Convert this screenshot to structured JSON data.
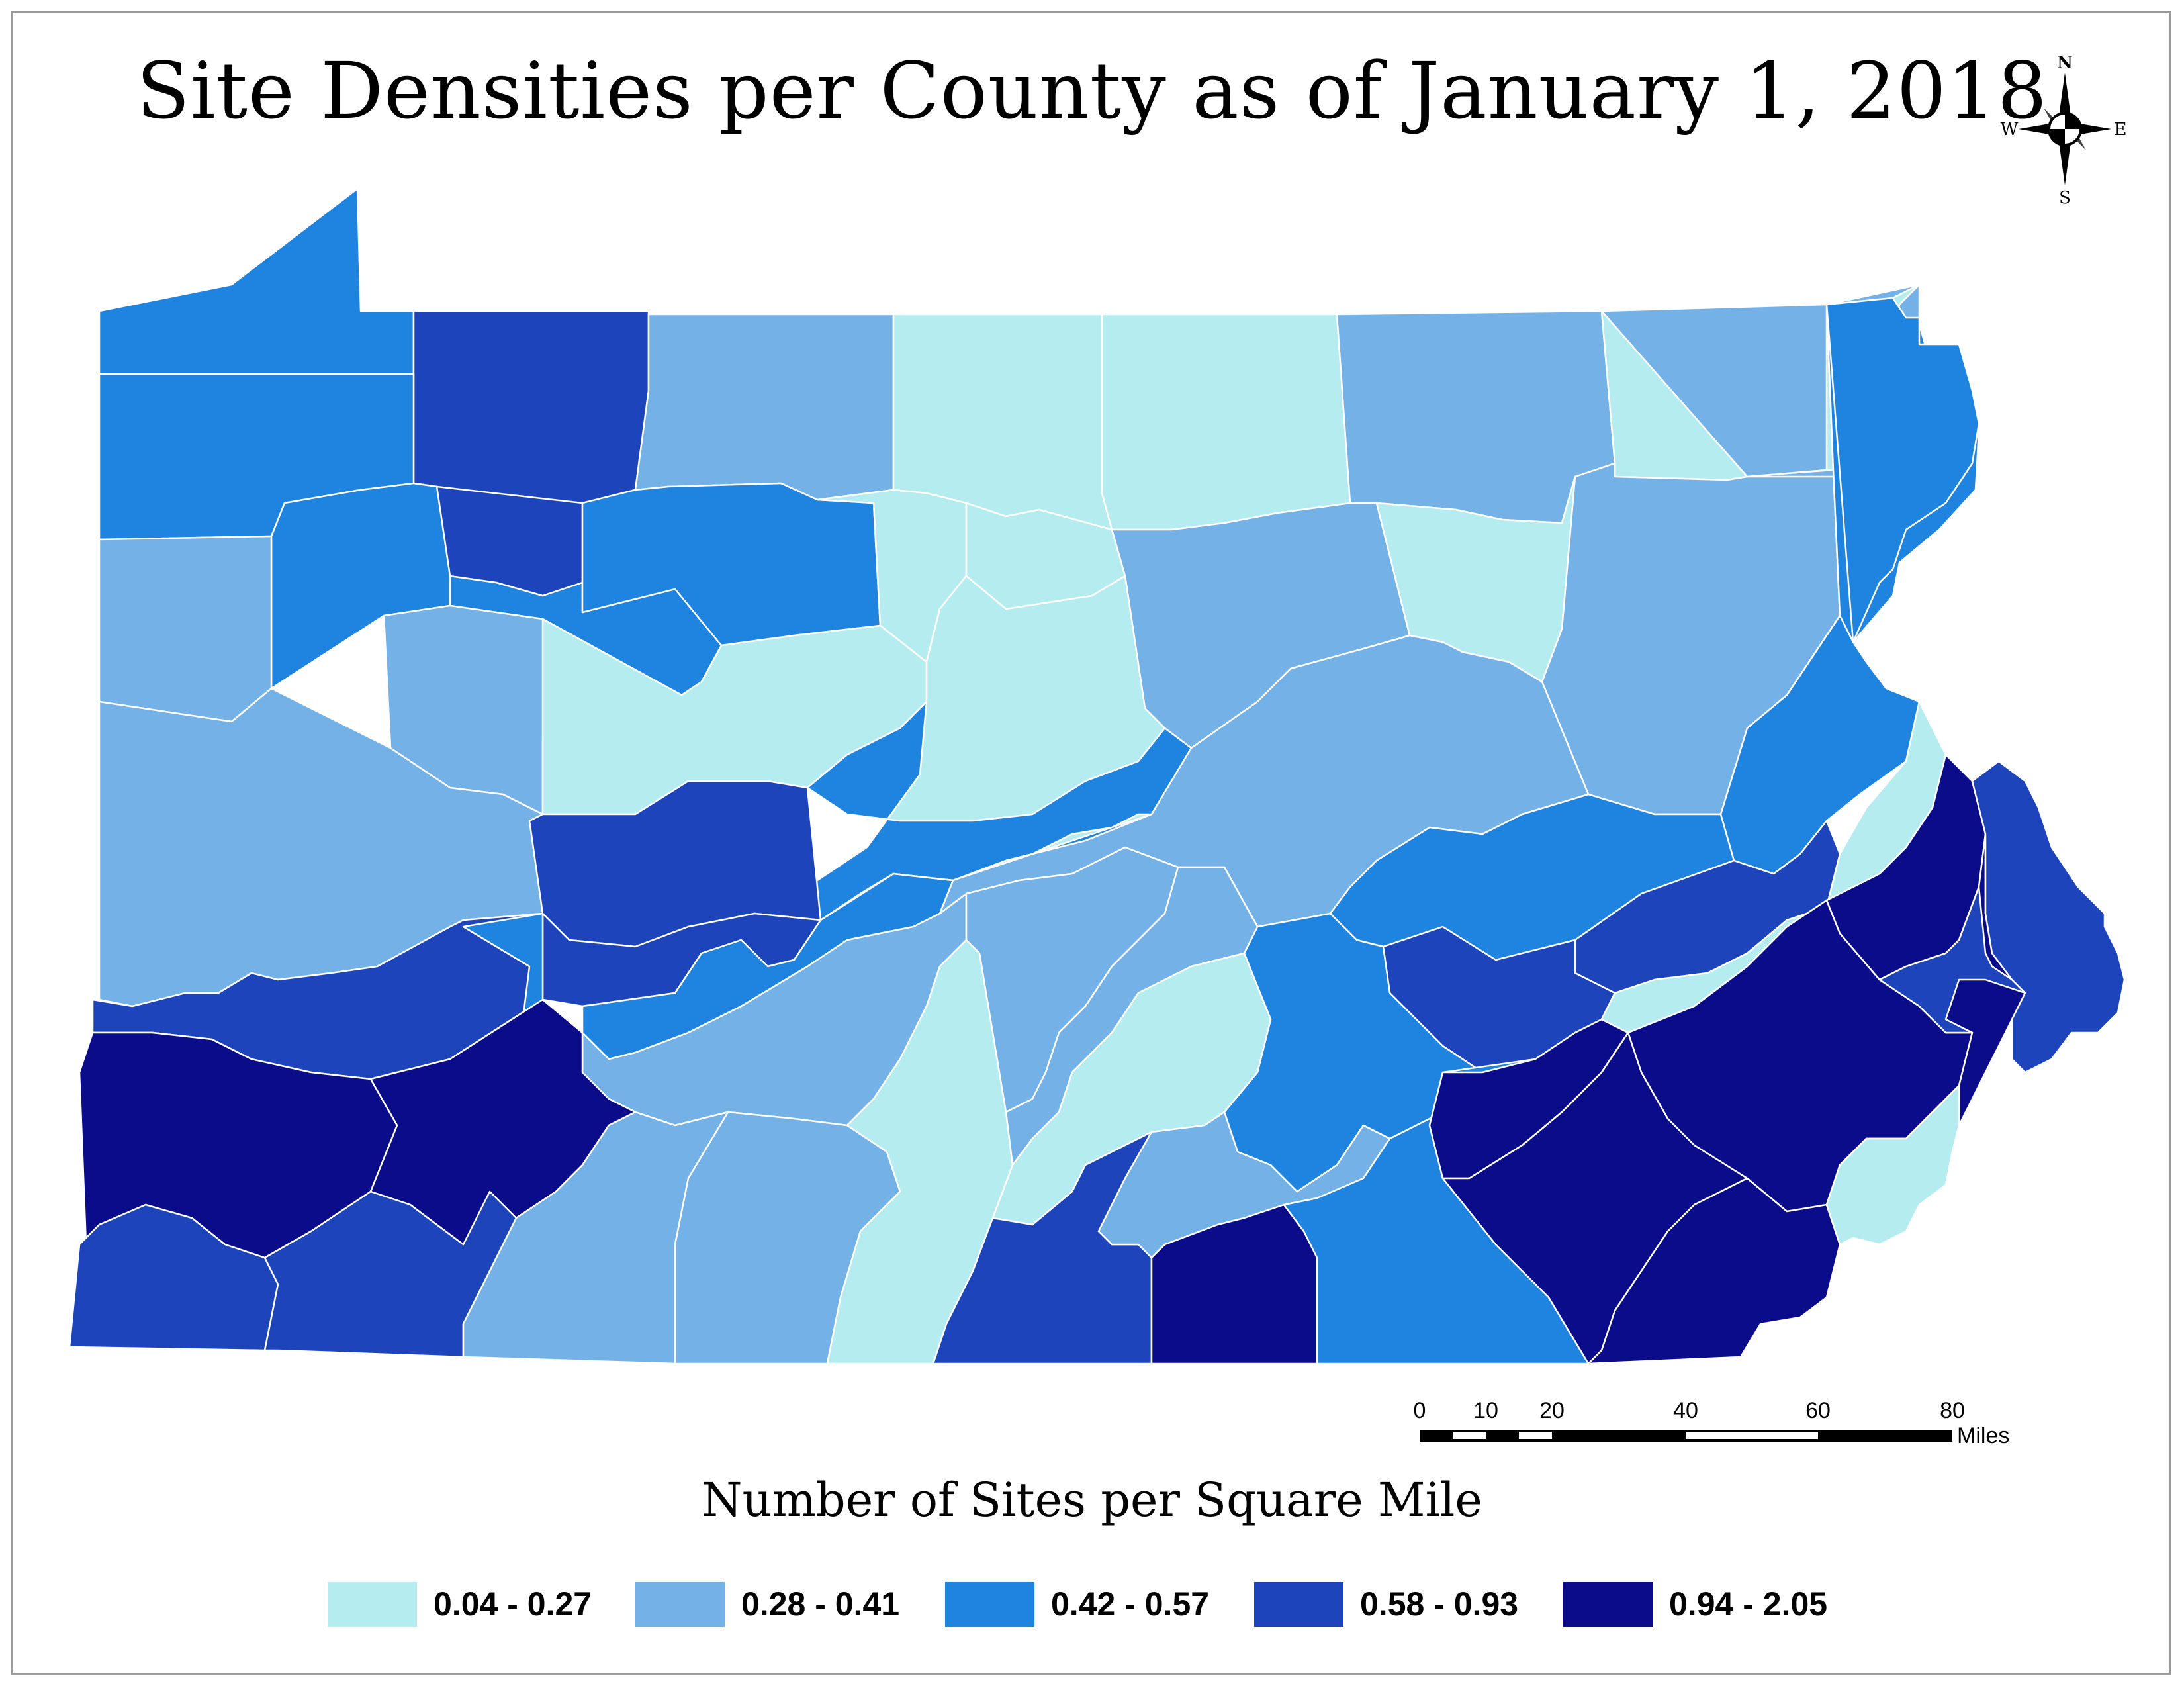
{
  "title": "Site Densities per County as of January 1, 2018",
  "compass": {
    "n": "N",
    "s": "S",
    "e": "E",
    "w": "W"
  },
  "scale_bar": {
    "ticks": [
      "0",
      "10",
      "20",
      "40",
      "60",
      "80"
    ],
    "units": "Miles"
  },
  "legend": {
    "title": "Number of Sites per Square Mile",
    "classes": [
      {
        "label": "0.04 - 0.27",
        "color": "#b5ecf0"
      },
      {
        "label": "0.28 - 0.41",
        "color": "#74b1e6"
      },
      {
        "label": "0.42 - 0.57",
        "color": "#1f83e0"
      },
      {
        "label": "0.58 - 0.93",
        "color": "#1e44bb"
      },
      {
        "label": "0.94 - 2.05",
        "color": "#0b0c8a"
      }
    ]
  },
  "map": {
    "region_border_color": "#ffffff",
    "regions": [
      {
        "name": "r01",
        "class": 2
      },
      {
        "name": "r02",
        "class": 3
      },
      {
        "name": "r03",
        "class": 1
      },
      {
        "name": "r04",
        "class": 0
      },
      {
        "name": "r05",
        "class": 0
      },
      {
        "name": "r06",
        "class": 1
      },
      {
        "name": "r07",
        "class": 0
      },
      {
        "name": "r08",
        "class": 2
      },
      {
        "name": "r09",
        "class": 2
      },
      {
        "name": "r10",
        "class": 2
      },
      {
        "name": "r11",
        "class": 3
      },
      {
        "name": "r12",
        "class": 2
      },
      {
        "name": "r13",
        "class": 0
      },
      {
        "name": "r14",
        "class": 0
      },
      {
        "name": "r15",
        "class": 1
      },
      {
        "name": "r16",
        "class": 0
      },
      {
        "name": "r17",
        "class": 1
      },
      {
        "name": "r18",
        "class": 1
      },
      {
        "name": "r19",
        "class": 0
      },
      {
        "name": "r20",
        "class": 2
      },
      {
        "name": "r21",
        "class": 1
      },
      {
        "name": "r22",
        "class": 2
      },
      {
        "name": "r23",
        "class": 1
      },
      {
        "name": "r24",
        "class": 1
      },
      {
        "name": "r25",
        "class": 0
      },
      {
        "name": "r26",
        "class": 0
      },
      {
        "name": "r27",
        "class": 2
      },
      {
        "name": "r28",
        "class": 1
      },
      {
        "name": "r29",
        "class": 3
      },
      {
        "name": "r30",
        "class": 3
      },
      {
        "name": "r31",
        "class": 3
      },
      {
        "name": "r32",
        "class": 3
      },
      {
        "name": "r33",
        "class": 2
      },
      {
        "name": "r34",
        "class": 1
      },
      {
        "name": "r35",
        "class": 0
      },
      {
        "name": "r36",
        "class": 0
      },
      {
        "name": "r37",
        "class": 2
      },
      {
        "name": "r38",
        "class": 2
      },
      {
        "name": "r39",
        "class": 3
      },
      {
        "name": "r40",
        "class": 3
      },
      {
        "name": "r41",
        "class": 2
      },
      {
        "name": "r42",
        "class": 0
      },
      {
        "name": "r43",
        "class": 1
      },
      {
        "name": "r44",
        "class": 2
      },
      {
        "name": "r45",
        "class": 4
      },
      {
        "name": "r46",
        "class": 4
      },
      {
        "name": "r47",
        "class": 3
      },
      {
        "name": "r48",
        "class": 3
      },
      {
        "name": "r49",
        "class": 1
      },
      {
        "name": "r50",
        "class": 1
      },
      {
        "name": "r51",
        "class": 0
      },
      {
        "name": "r52",
        "class": 1
      },
      {
        "name": "r53",
        "class": 1
      },
      {
        "name": "r54",
        "class": 0
      },
      {
        "name": "r55",
        "class": 3
      },
      {
        "name": "r56",
        "class": 1
      },
      {
        "name": "r57",
        "class": 4
      },
      {
        "name": "r58",
        "class": 2
      },
      {
        "name": "r59",
        "class": 4
      },
      {
        "name": "r60",
        "class": 4
      },
      {
        "name": "r61",
        "class": 4
      },
      {
        "name": "r62",
        "class": 4
      },
      {
        "name": "r63",
        "class": 4
      },
      {
        "name": "r64",
        "class": 4
      },
      {
        "name": "r65",
        "class": 3
      },
      {
        "name": "r66",
        "class": 3
      },
      {
        "name": "r67",
        "class": 0
      }
    ]
  }
}
